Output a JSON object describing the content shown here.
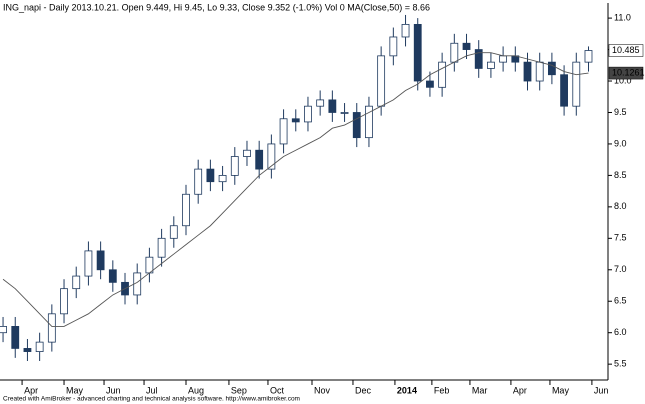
{
  "chart_data": {
    "type": "candlestick",
    "title": "ING_napi - Daily 2013.10.21. Open 9.449, Hi 9.45, Lo 9.33, Close 9.352 (-1.0%) Vol 0 MA(Close,50) = 8.66",
    "footer": "Created with AmiBroker - advanced charting and technical analysis software. http://www.amibroker.com",
    "open": [
      6.0,
      6.1,
      5.75,
      5.7,
      5.85,
      6.3,
      6.7,
      6.9,
      7.3,
      7.0,
      6.8,
      6.6,
      6.95,
      7.2,
      7.5,
      7.7,
      8.2,
      8.6,
      8.4,
      8.5,
      8.8,
      8.9,
      8.6,
      9.0,
      9.4,
      9.35,
      9.6,
      9.7,
      9.5,
      9.5,
      9.1,
      9.6,
      10.4,
      10.7,
      10.9,
      10.0,
      9.9,
      10.3,
      10.6,
      10.5,
      10.2,
      10.3,
      10.4,
      10.3,
      10.0,
      10.3,
      10.1,
      9.6,
      10.3
    ],
    "high": [
      6.25,
      6.25,
      5.9,
      6.0,
      6.45,
      6.85,
      7.05,
      7.45,
      7.45,
      7.15,
      6.95,
      7.1,
      7.35,
      7.65,
      7.85,
      8.35,
      8.75,
      8.75,
      8.65,
      8.95,
      9.05,
      9.05,
      9.15,
      9.55,
      9.55,
      9.75,
      9.85,
      9.85,
      9.65,
      9.65,
      9.75,
      10.55,
      10.85,
      11.05,
      11.0,
      10.15,
      10.45,
      10.75,
      10.75,
      10.65,
      10.45,
      10.55,
      10.55,
      10.45,
      10.45,
      10.45,
      10.25,
      10.45,
      10.55
    ],
    "low": [
      5.85,
      5.6,
      5.55,
      5.55,
      5.7,
      6.15,
      6.55,
      6.75,
      6.85,
      6.65,
      6.45,
      6.45,
      6.8,
      7.05,
      7.35,
      7.55,
      8.05,
      8.25,
      8.25,
      8.35,
      8.65,
      8.45,
      8.45,
      8.85,
      9.2,
      9.2,
      9.45,
      9.35,
      9.35,
      8.95,
      8.95,
      9.45,
      10.25,
      10.55,
      9.85,
      9.75,
      9.75,
      10.15,
      10.35,
      10.05,
      10.05,
      10.15,
      10.15,
      9.85,
      9.85,
      9.95,
      9.45,
      9.45,
      10.15
    ],
    "close": [
      6.1,
      5.75,
      5.7,
      5.85,
      6.3,
      6.7,
      6.9,
      7.3,
      7.0,
      6.8,
      6.6,
      6.95,
      7.2,
      7.5,
      7.7,
      8.2,
      8.6,
      8.4,
      8.5,
      8.8,
      8.9,
      8.6,
      9.0,
      9.4,
      9.35,
      9.6,
      9.7,
      9.5,
      9.5,
      9.1,
      9.6,
      10.4,
      10.7,
      10.9,
      10.0,
      9.9,
      10.3,
      10.6,
      10.5,
      10.2,
      10.3,
      10.4,
      10.3,
      10.0,
      10.3,
      10.1,
      9.6,
      10.3,
      10.485
    ],
    "ma": [
      6.85,
      6.7,
      6.5,
      6.3,
      6.1,
      6.1,
      6.2,
      6.3,
      6.45,
      6.6,
      6.7,
      6.8,
      6.95,
      7.1,
      7.25,
      7.4,
      7.55,
      7.7,
      7.9,
      8.1,
      8.3,
      8.5,
      8.65,
      8.8,
      8.9,
      9.0,
      9.1,
      9.25,
      9.3,
      9.4,
      9.5,
      9.6,
      9.7,
      9.85,
      9.95,
      10.1,
      10.2,
      10.3,
      10.4,
      10.45,
      10.45,
      10.4,
      10.4,
      10.35,
      10.3,
      10.25,
      10.15,
      10.1,
      10.1261
    ],
    "up_color": "#ffffff",
    "down_color": "#1f3a5f",
    "ma_color": "#555555",
    "xlim": [
      -0.25,
      49.6
    ],
    "xticks": [
      {
        "value": 1.56,
        "label": "Apr"
      },
      {
        "value": 5.0,
        "label": "May"
      },
      {
        "value": 8.28,
        "label": "Jun"
      },
      {
        "value": 11.56,
        "label": "Jul"
      },
      {
        "value": 15.0,
        "label": "Aug"
      },
      {
        "value": 18.52,
        "label": "Sep"
      },
      {
        "value": 21.72,
        "label": "Oct"
      },
      {
        "value": 25.33,
        "label": "Nov"
      },
      {
        "value": 28.69,
        "label": "Dec"
      },
      {
        "value": 32.13,
        "label": "2014"
      },
      {
        "value": 35.16,
        "label": "Feb"
      },
      {
        "value": 38.28,
        "label": "Mar"
      },
      {
        "value": 41.64,
        "label": "Apr"
      },
      {
        "value": 44.84,
        "label": "May"
      },
      {
        "value": 48.28,
        "label": "Jun"
      }
    ],
    "ylim": [
      5.28,
      11.24
    ],
    "yticks": [
      5.5,
      {
        "value": 6,
        "label": "6.0"
      },
      6.5,
      {
        "value": 7,
        "label": "7.0"
      },
      7.5,
      {
        "value": 8,
        "label": "8.0"
      },
      8.5,
      {
        "value": 9,
        "label": "9.0"
      },
      9.5,
      {
        "value": 10,
        "label": "10.0"
      },
      10.5,
      {
        "value": 11,
        "label": "11.0"
      }
    ]
  }
}
